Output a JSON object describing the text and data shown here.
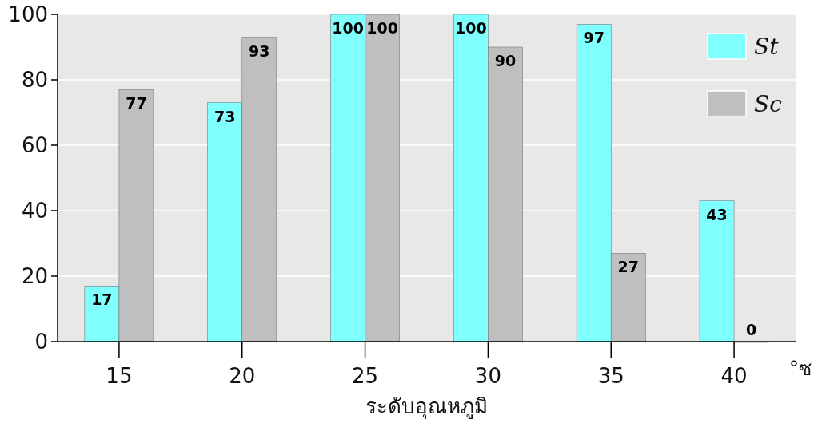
{
  "chart_data": {
    "type": "bar",
    "xlabel": "ระดับอุณหภูมิ",
    "annotations": [
      "°ซ"
    ],
    "categories": [
      "15",
      "20",
      "25",
      "30",
      "35",
      "40"
    ],
    "series": [
      {
        "name": "St",
        "color": "#80ffff",
        "values": [
          17,
          73,
          100,
          100,
          97,
          43
        ]
      },
      {
        "name": "Sc",
        "color": "#bfbfbf",
        "values": [
          77,
          93,
          100,
          90,
          27,
          0
        ]
      }
    ],
    "ylim": [
      0,
      100
    ],
    "yticks": [
      0,
      20,
      40,
      60,
      80,
      100
    ],
    "grid": "y",
    "legend": "top right",
    "data_labels": true
  }
}
